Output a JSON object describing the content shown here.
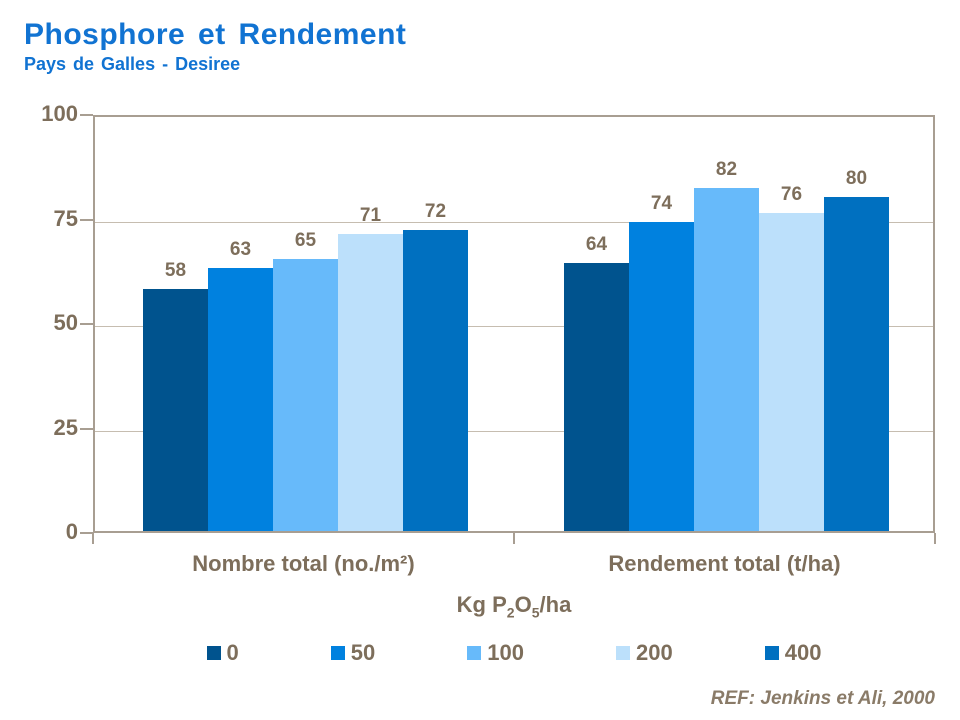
{
  "header": {
    "title": "Phosphore et Rendement",
    "subtitle": "Pays de Galles - Desiree"
  },
  "chart_data": {
    "type": "bar",
    "title": "Phosphore et Rendement",
    "subtitle": "Pays de Galles - Desiree",
    "categories": [
      "Nombre total (no./m²)",
      "Rendement total (t/ha)"
    ],
    "series": [
      {
        "name": "0",
        "color": "#00538E",
        "values": [
          58,
          64
        ]
      },
      {
        "name": "50",
        "color": "#0081DF",
        "values": [
          63,
          74
        ]
      },
      {
        "name": "100",
        "color": "#67BAFA",
        "values": [
          65,
          82
        ]
      },
      {
        "name": "200",
        "color": "#BCE0FB",
        "values": [
          71,
          76
        ]
      },
      {
        "name": "400",
        "color": "#0070C0",
        "values": [
          72,
          80
        ]
      }
    ],
    "ylim": [
      0,
      100
    ],
    "yticks": [
      0,
      25,
      50,
      75,
      100
    ],
    "grid": true,
    "value_labels": true,
    "legend_position": "bottom",
    "legend_title": "Kg P2O5/ha"
  },
  "legend_title_parts": {
    "p1": "Kg P",
    "s1": "2",
    "p2": "O",
    "s2": "5",
    "p3": "/ha"
  },
  "footer": {
    "reference": "REF: Jenkins et Ali, 2000"
  },
  "colors": {
    "title_blue": "#1173D2",
    "text_brown": "#7D6E5B",
    "axis_border": "#A89E92",
    "gridline": "#C6BDB0"
  }
}
